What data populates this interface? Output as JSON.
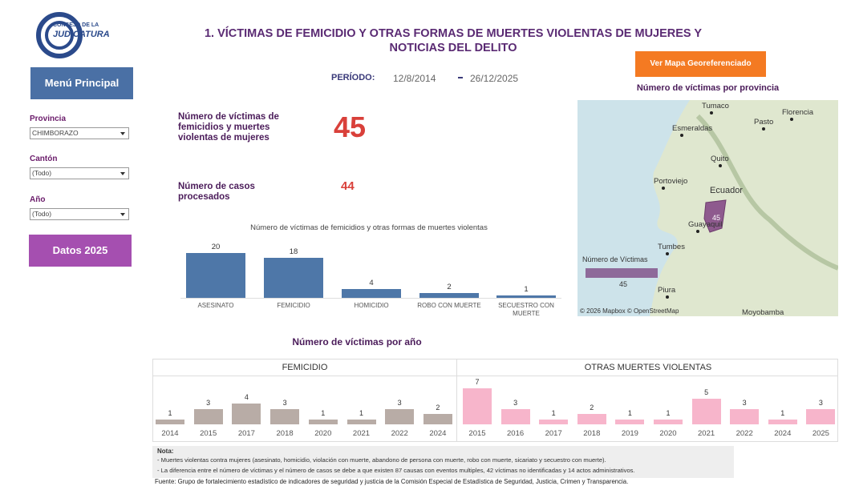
{
  "logo": {
    "line1": "CONSEJO DE LA",
    "line2": "JUDICATURA"
  },
  "title": "1. VÍCTIMAS DE FEMICIDIO Y OTRAS FORMAS DE MUERTES VIOLENTAS DE MUJERES Y NOTICIAS DEL DELITO",
  "buttons": {
    "main_menu": "Menú Principal",
    "data_2025": "Datos 2025",
    "map": "Ver Mapa Georeferenciado"
  },
  "period": {
    "label": "PERÍODO:",
    "start": "12/8/2014",
    "end": "26/12/2025"
  },
  "filters": [
    {
      "label": "Provincia",
      "value": "CHIMBORAZO"
    },
    {
      "label": "Cantón",
      "value": "(Todo)"
    },
    {
      "label": "Año",
      "value": "(Todo)"
    }
  ],
  "kpis": [
    {
      "label": "Número de víctimas de femicidios y muertes violentas de mujeres",
      "value": 45
    },
    {
      "label": "Número de casos procesados",
      "value": 44
    }
  ],
  "type_chart": {
    "type": "bar",
    "title": "Número de víctimas de femicidios y otras formas de muertes violentas",
    "categories": [
      "ASESINATO",
      "FEMICIDIO",
      "HOMICIDIO",
      "ROBO CON MUERTE",
      "SECUESTRO CON MUERTE"
    ],
    "values": [
      20,
      18,
      4,
      2,
      1
    ],
    "color": "#4e77a8"
  },
  "year_chart": {
    "type": "bar",
    "title": "Número de víctimas por año",
    "panels": [
      {
        "name": "FEMICIDIO",
        "color": "#b8aca6",
        "categories": [
          "2014",
          "2015",
          "2017",
          "2018",
          "2020",
          "2021",
          "2022",
          "2024"
        ],
        "values": [
          1,
          3,
          4,
          3,
          1,
          1,
          3,
          2
        ]
      },
      {
        "name": "OTRAS MUERTES VIOLENTAS",
        "color": "#f7b5cb",
        "categories": [
          "2015",
          "2016",
          "2017",
          "2018",
          "2019",
          "2020",
          "2021",
          "2022",
          "2024",
          "2025"
        ],
        "values": [
          7,
          3,
          1,
          2,
          1,
          1,
          5,
          3,
          1,
          3
        ]
      }
    ]
  },
  "map": {
    "title": "Número de víctimas por provincia",
    "places": [
      "Tumaco",
      "Pasto",
      "Florencia",
      "Esmeraldas",
      "Quito",
      "Portoviejo",
      "Ecuador",
      "Guayaquil",
      "Tumbes",
      "Piura",
      "Moyobamba"
    ],
    "region_value": 45,
    "legend_title": "Número de Víctimas",
    "legend_value": 45,
    "attribution": "© 2026 Mapbox © OpenStreetMap"
  },
  "notes": {
    "heading": "Nota:",
    "items": [
      "- Muertes violentas contra mujeres (asesinato, homicidio, violación con muerte, abandono de persona con muerte, robo con muerte, sicariato y secuestro con muerte).",
      "- La diferencia entre el número de víctimas y el número de casos se debe a que existen 87 causas con eventos multiples, 42 víctimas no identificadas y 14 actos administrativos."
    ],
    "source": "Fuente: Grupo de fortalecimiento estadístico de indicadores de seguridad y justicia de la Comisión Especial de Estadística de Seguridad, Justicia, Crimen y Transparencia."
  }
}
